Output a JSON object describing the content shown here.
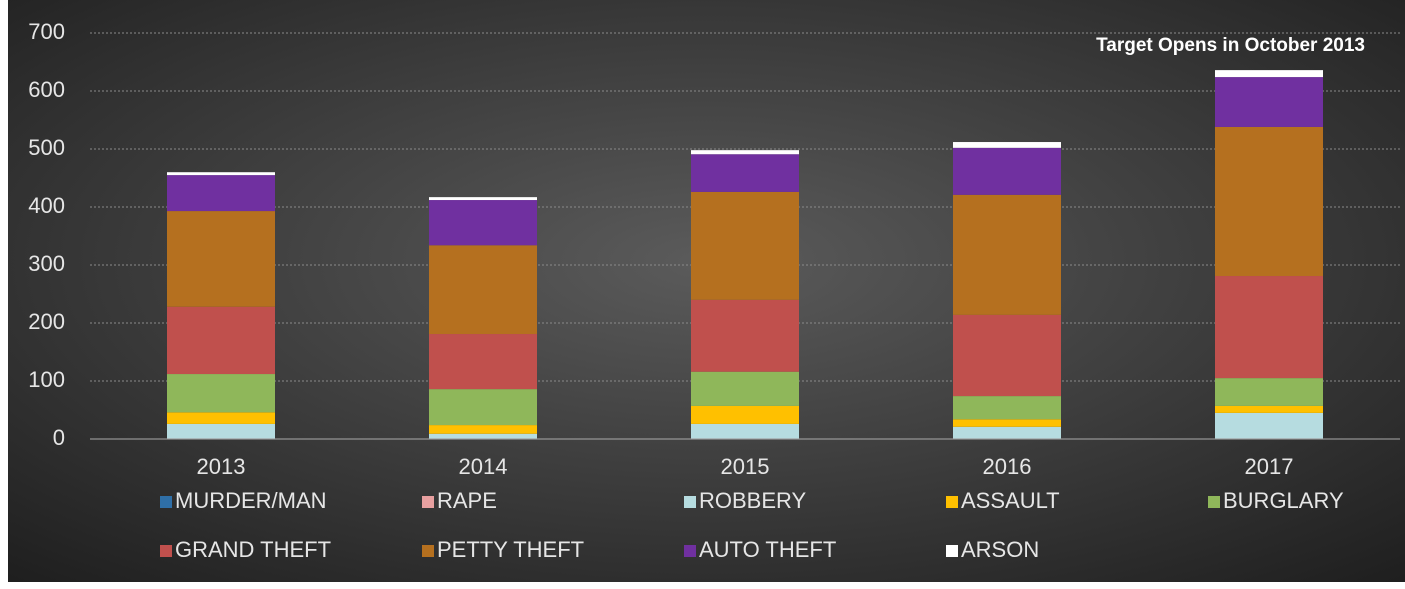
{
  "chart_data": {
    "type": "stacked_bar",
    "annotation": "Target Opens in October 2013",
    "categories": [
      "2013",
      "2014",
      "2015",
      "2016",
      "2017"
    ],
    "series": [
      {
        "name": "MURDER/MAN",
        "color": "#2f6fa7",
        "values": [
          0,
          0,
          0,
          0,
          0
        ]
      },
      {
        "name": "RAPE",
        "color": "#e8a0a0",
        "values": [
          1,
          1,
          1,
          1,
          1
        ]
      },
      {
        "name": "ROBBERY",
        "color": "#b6dce0",
        "values": [
          25,
          8,
          25,
          20,
          44
        ]
      },
      {
        "name": "ASSAULT",
        "color": "#ffc000",
        "values": [
          20,
          15,
          31,
          13,
          12
        ]
      },
      {
        "name": "BURGLARY",
        "color": "#8fb75a",
        "values": [
          66,
          62,
          59,
          40,
          48
        ]
      },
      {
        "name": "GRAND THEFT",
        "color": "#c0504d",
        "values": [
          116,
          95,
          124,
          140,
          176
        ]
      },
      {
        "name": "PETTY THEFT",
        "color": "#b5701f",
        "values": [
          165,
          153,
          186,
          207,
          257
        ]
      },
      {
        "name": "AUTO THEFT",
        "color": "#7030a0",
        "values": [
          62,
          78,
          65,
          81,
          86
        ]
      },
      {
        "name": "ARSON",
        "color": "#ffffff",
        "values": [
          5,
          5,
          7,
          10,
          12
        ]
      }
    ],
    "ylim": [
      0,
      700
    ],
    "yticks": [
      0,
      100,
      200,
      300,
      400,
      500,
      600,
      700
    ],
    "grid": true
  }
}
